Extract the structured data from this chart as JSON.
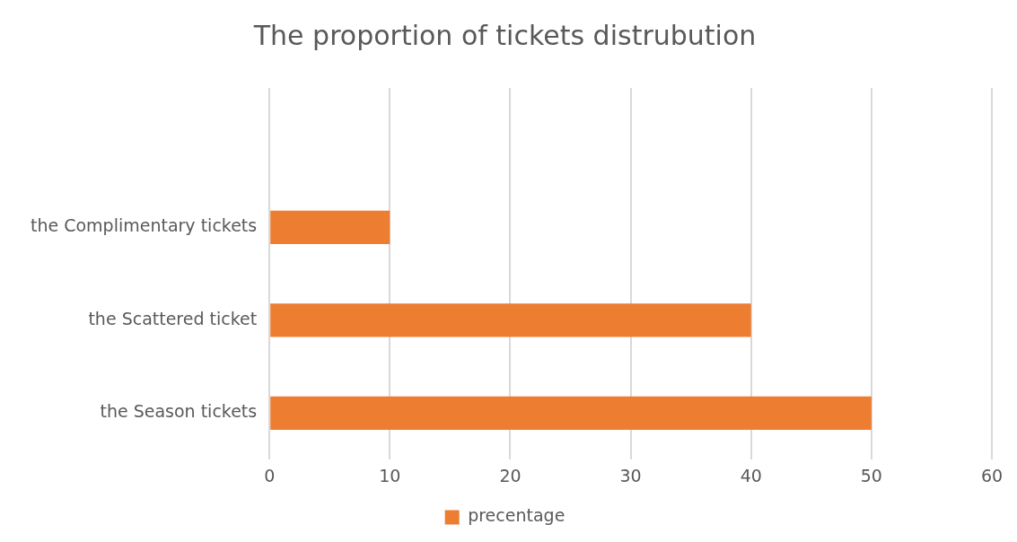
{
  "chart_data": {
    "type": "bar",
    "orientation": "horizontal",
    "title": "The proportion of tickets distrubution",
    "categories": [
      null,
      "the Complimentary tickets",
      "the Scattered ticket",
      "the Season tickets"
    ],
    "series": [
      {
        "name": "precentage",
        "color": "#ed7d31",
        "values": [
          null,
          10,
          40,
          50
        ]
      }
    ],
    "xlim": [
      0,
      60
    ],
    "xticks": [
      0,
      10,
      20,
      30,
      40,
      50,
      60
    ],
    "grid": "x",
    "legend": "bottom"
  }
}
